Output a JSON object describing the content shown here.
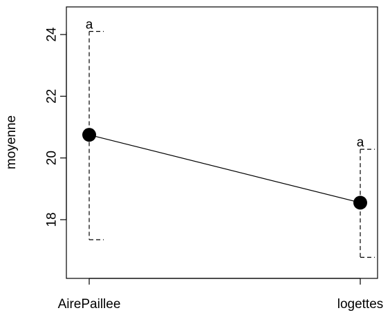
{
  "chart_data": {
    "type": "line",
    "title": "",
    "xlabel": "",
    "ylabel": "moyenne",
    "categories": [
      "AirePaillee",
      "logettes"
    ],
    "series": [
      {
        "values": [
          20.75,
          18.55
        ],
        "ci_lower": [
          17.35,
          16.78
        ],
        "ci_upper": [
          24.1,
          20.28
        ],
        "group_letters": [
          "a",
          "a"
        ]
      }
    ],
    "yticks": [
      18,
      20,
      22,
      24
    ],
    "ylim": [
      16.3,
      24.85
    ],
    "grid": false,
    "legend": "none",
    "colors": {
      "line": "#000000",
      "marker": "#000000",
      "axis": "#000000"
    }
  }
}
